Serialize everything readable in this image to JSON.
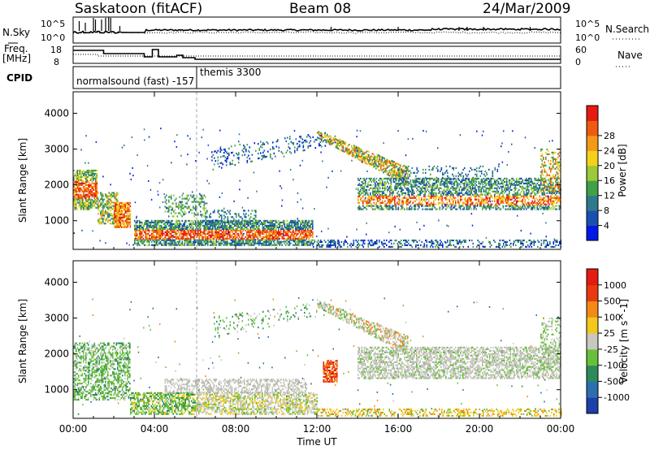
{
  "header": {
    "station": "Saskatoon (fitACF)",
    "beam": "Beam 08",
    "date": "24/Mar/2009"
  },
  "noise_panel": {
    "left_label": "N.Sky",
    "left_ticks": [
      "10^5",
      "10^0"
    ],
    "right_ticks": [
      "10^5",
      "10^0"
    ],
    "right_label": "N.Search"
  },
  "freq_panel": {
    "left_label_line1": "Freq.",
    "left_label_line2": "[MHz]",
    "left_ticks": [
      "18",
      "8"
    ],
    "right_ticks": [
      "60",
      "0"
    ],
    "right_label": "Nave"
  },
  "cpid": {
    "label": "CPID",
    "modes": [
      "normalsound (fast) -157",
      "themis 3300"
    ]
  },
  "chart_data": [
    {
      "type": "heatmap",
      "title": "",
      "quantity": "Power",
      "ylabel": "Slant Range [km]",
      "yticks": [
        "1000",
        "2000",
        "3000",
        "4000"
      ],
      "ylim": [
        200,
        4600
      ],
      "xlim": [
        0,
        24
      ],
      "colorbar": {
        "label": "Power [dB]",
        "ticks": [
          "4",
          "8",
          "12",
          "16",
          "20",
          "24",
          "28"
        ],
        "colors": [
          "#0018e6",
          "#1a4fb0",
          "#2d7a8c",
          "#3fa04a",
          "#9cc83a",
          "#f2d21c",
          "#f29a16",
          "#ee5a10",
          "#e51b12"
        ]
      }
    },
    {
      "type": "heatmap",
      "title": "",
      "quantity": "Velocity",
      "ylabel": "Slant Range [km]",
      "yticks": [
        "1000",
        "2000",
        "3000",
        "4000"
      ],
      "ylim": [
        200,
        4600
      ],
      "xlim": [
        0,
        24
      ],
      "colorbar": {
        "label": "Velocity [m s^-1]",
        "ticks": [
          "1000",
          "500",
          "100",
          "25",
          "-25",
          "-100",
          "-500",
          "-1000"
        ],
        "colors": [
          "#1c3fa8",
          "#2c6eb0",
          "#2f8a5a",
          "#68c03a",
          "#c8c8c0",
          "#f2c81c",
          "#f28a16",
          "#ea3a10",
          "#e51b12"
        ]
      }
    }
  ],
  "x_axis": {
    "ticks": [
      "00:00",
      "04:00",
      "08:00",
      "12:00",
      "16:00",
      "20:00",
      "00:00"
    ],
    "label": "Time UT"
  }
}
